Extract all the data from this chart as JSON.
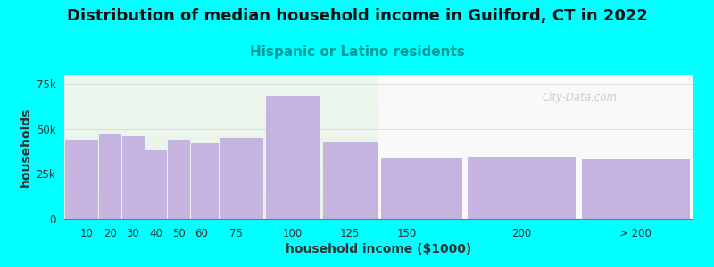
{
  "title": "Distribution of median household income in Guilford, CT in 2022",
  "subtitle": "Hispanic or Latino residents",
  "xlabel": "household income ($1000)",
  "ylabel": "households",
  "background_color": "#00FFFF",
  "bar_color": "#c5b3e0",
  "bar_edge_color": "#b39ddb",
  "categories": [
    "10",
    "20",
    "30",
    "40",
    "50",
    "60",
    "75",
    "100",
    "125",
    "150",
    "200",
    "> 200"
  ],
  "values": [
    44000,
    47000,
    46000,
    38000,
    44000,
    42000,
    45000,
    68000,
    43000,
    33500,
    34500,
    33000
  ],
  "ylim": [
    0,
    80000
  ],
  "yticks": [
    0,
    25000,
    50000,
    75000
  ],
  "ytick_labels": [
    "0",
    "25k",
    "50k",
    "75k"
  ],
  "title_fontsize": 13,
  "subtitle_fontsize": 11,
  "subtitle_color": "#009999",
  "axis_label_fontsize": 10,
  "tick_fontsize": 8.5,
  "watermark": "City-Data.com"
}
